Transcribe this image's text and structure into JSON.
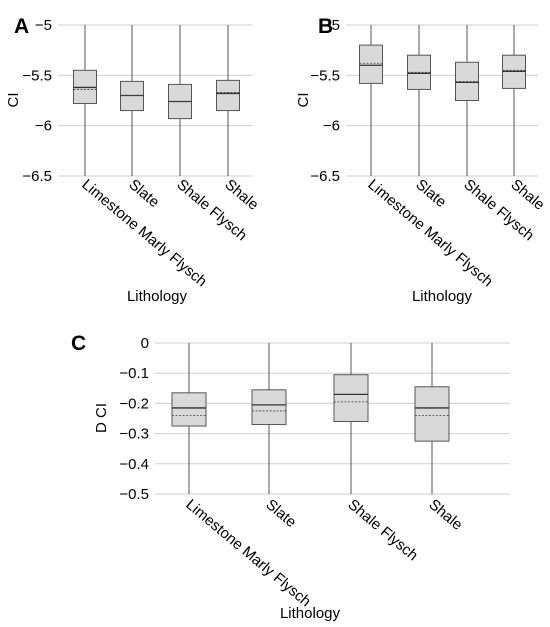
{
  "chart_data": [
    {
      "panel": "A",
      "type": "box",
      "categories": [
        "Limestone Marly Flysch",
        "Slate",
        "Shale Flysch",
        "Shale"
      ],
      "xlabel": "Lithology",
      "ylabel": "CI",
      "ylim": [
        -6.5,
        -5
      ],
      "yticks": [
        -5,
        -5.5,
        -6,
        -6.5
      ],
      "ytick_labels": [
        "−5",
        "−5.5",
        "−6",
        "−6.5"
      ],
      "grid": "horizontal",
      "boxes": [
        {
          "min": -6.5,
          "q1": -5.78,
          "median": -5.62,
          "mean": -5.64,
          "q3": -5.45,
          "max": -5.0
        },
        {
          "min": -6.5,
          "q1": -5.85,
          "median": -5.7,
          "mean": -5.7,
          "q3": -5.56,
          "max": -5.0
        },
        {
          "min": -6.5,
          "q1": -5.93,
          "median": -5.76,
          "mean": -5.76,
          "q3": -5.59,
          "max": -5.0
        },
        {
          "min": -6.5,
          "q1": -5.85,
          "median": -5.68,
          "mean": -5.67,
          "q3": -5.55,
          "max": -5.0
        }
      ]
    },
    {
      "panel": "B",
      "type": "box",
      "categories": [
        "Limestone Marly Flysch",
        "Slate",
        "Shale Flysch",
        "Shale"
      ],
      "xlabel": "Lithology",
      "ylabel": "CI",
      "ylim": [
        -6.5,
        -5
      ],
      "yticks": [
        -5,
        -5.5,
        -6,
        -6.5
      ],
      "ytick_labels": [
        "−5",
        "−5.5",
        "−6",
        "−6.5"
      ],
      "grid": "horizontal",
      "boxes": [
        {
          "min": -6.5,
          "q1": -5.58,
          "median": -5.4,
          "mean": -5.38,
          "q3": -5.2,
          "max": -5.0
        },
        {
          "min": -6.5,
          "q1": -5.64,
          "median": -5.48,
          "mean": -5.47,
          "q3": -5.3,
          "max": -5.0
        },
        {
          "min": -6.5,
          "q1": -5.75,
          "median": -5.57,
          "mean": -5.56,
          "q3": -5.37,
          "max": -5.0
        },
        {
          "min": -6.5,
          "q1": -5.63,
          "median": -5.46,
          "mean": -5.45,
          "q3": -5.3,
          "max": -5.0
        }
      ]
    },
    {
      "panel": "C",
      "type": "box",
      "categories": [
        "Limestone Marly Flysch",
        "Slate",
        "Shale Flysch",
        "Shale"
      ],
      "xlabel": "Lithology",
      "ylabel": "D CI",
      "ylim": [
        -0.5,
        0
      ],
      "yticks": [
        0,
        -0.1,
        -0.2,
        -0.3,
        -0.4,
        -0.5
      ],
      "ytick_labels": [
        "0",
        "−0.1",
        "−0.2",
        "−0.3",
        "−0.4",
        "−0.5"
      ],
      "grid": "horizontal",
      "boxes": [
        {
          "min": -0.5,
          "q1": -0.275,
          "median": -0.215,
          "mean": -0.24,
          "q3": -0.165,
          "max": 0.0
        },
        {
          "min": -0.5,
          "q1": -0.27,
          "median": -0.205,
          "mean": -0.225,
          "q3": -0.155,
          "max": 0.0
        },
        {
          "min": -0.5,
          "q1": -0.26,
          "median": -0.17,
          "mean": -0.195,
          "q3": -0.105,
          "max": 0.0
        },
        {
          "min": -0.5,
          "q1": -0.325,
          "median": -0.215,
          "mean": -0.24,
          "q3": -0.145,
          "max": 0.0
        }
      ]
    }
  ],
  "colors": {
    "box_fill": "#d9d9d9",
    "box_stroke": "#555555",
    "whisker": "#555555",
    "grid": "#cfcfcf",
    "text": "#000000"
  }
}
